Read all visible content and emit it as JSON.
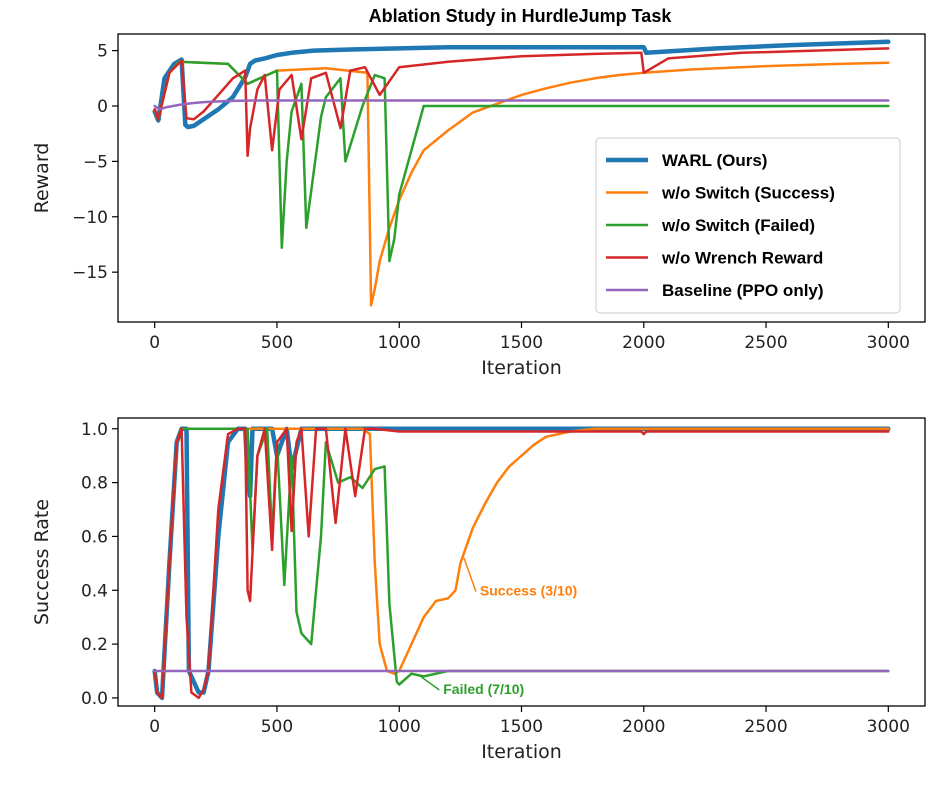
{
  "title": "Ablation Study in HurdleJump Task",
  "chart_data": [
    {
      "type": "line",
      "xlabel": "Iteration",
      "ylabel": "Reward",
      "xlim": [
        -150,
        3150
      ],
      "ylim": [
        -19.5,
        6.5
      ],
      "xticks": [
        0,
        500,
        1000,
        1500,
        2000,
        2500,
        3000
      ],
      "yticks": [
        5,
        0,
        -5,
        -10,
        -15
      ],
      "ytick_labels": [
        "5",
        "0",
        "−5",
        "−10",
        "−15"
      ],
      "legend": "right",
      "series": [
        {
          "name": "WARL (Ours)",
          "color": "#1f77b4",
          "width": 4.5,
          "x": [
            0,
            15,
            40,
            80,
            110,
            125,
            135,
            160,
            200,
            260,
            320,
            370,
            390,
            410,
            450,
            500,
            560,
            650,
            800,
            1000,
            1200,
            1500,
            1800,
            2000,
            2010,
            2300,
            2600,
            3000
          ],
          "y": [
            -0.5,
            -1.3,
            2.5,
            3.8,
            4.2,
            -1.7,
            -1.9,
            -1.8,
            -1.2,
            -0.3,
            0.8,
            2.6,
            3.8,
            4.1,
            4.3,
            4.6,
            4.8,
            5.0,
            5.1,
            5.2,
            5.3,
            5.3,
            5.3,
            5.3,
            4.8,
            5.2,
            5.5,
            5.8
          ]
        },
        {
          "name": "w/o Switch (Success)",
          "color": "#ff7f0e",
          "width": 2.5,
          "x": [
            0,
            15,
            60,
            100,
            300,
            380,
            500,
            700,
            870,
            885,
            900,
            920,
            960,
            1000,
            1050,
            1100,
            1200,
            1300,
            1400,
            1500,
            1600,
            1700,
            1800,
            1900,
            2000,
            2200,
            2500,
            2800,
            3000
          ],
          "y": [
            -0.3,
            -1.2,
            3.0,
            4.0,
            3.8,
            2.0,
            3.2,
            3.4,
            3.0,
            -18.0,
            -16.5,
            -14.0,
            -11.0,
            -8.5,
            -6.0,
            -4.0,
            -2.2,
            -0.6,
            0.2,
            1.0,
            1.6,
            2.1,
            2.5,
            2.8,
            3.0,
            3.3,
            3.6,
            3.8,
            3.9
          ]
        },
        {
          "name": "w/o Switch (Failed)",
          "color": "#2ca02c",
          "width": 2.5,
          "x": [
            0,
            15,
            60,
            100,
            300,
            380,
            500,
            520,
            540,
            560,
            600,
            620,
            680,
            700,
            760,
            780,
            850,
            900,
            940,
            960,
            980,
            1000,
            1100,
            1500,
            2000,
            3000
          ],
          "y": [
            -0.3,
            -1.2,
            3.0,
            4.0,
            3.8,
            2.0,
            3.2,
            -12.8,
            -5.0,
            -0.5,
            2.0,
            -11.0,
            -1.0,
            0.8,
            2.5,
            -5.0,
            0.0,
            2.8,
            2.5,
            -14.0,
            -12.0,
            -8.0,
            0.0,
            0.0,
            0.0,
            0.0
          ]
        },
        {
          "name": "w/o Wrench Reward",
          "color": "#d62728",
          "width": 2.5,
          "x": [
            0,
            15,
            60,
            110,
            130,
            160,
            200,
            260,
            320,
            370,
            380,
            390,
            420,
            450,
            480,
            510,
            560,
            600,
            640,
            700,
            760,
            800,
            860,
            920,
            1000,
            1200,
            1500,
            1800,
            1990,
            2000,
            2100,
            2400,
            2700,
            3000
          ],
          "y": [
            -0.3,
            -1.2,
            3.0,
            4.1,
            -1.1,
            -1.2,
            -0.5,
            1.0,
            2.5,
            3.2,
            -4.5,
            -2.0,
            1.5,
            2.8,
            -4.0,
            1.5,
            2.8,
            -3.0,
            2.5,
            3.0,
            -2.0,
            3.2,
            3.5,
            1.0,
            3.5,
            4.0,
            4.5,
            4.7,
            4.8,
            3.0,
            4.3,
            4.8,
            5.0,
            5.2
          ]
        },
        {
          "name": "Baseline (PPO only)",
          "color": "#9467bd",
          "width": 2.5,
          "x": [
            0,
            20,
            50,
            100,
            150,
            200,
            300,
            400,
            600,
            1000,
            2000,
            3000
          ],
          "y": [
            0.0,
            -0.3,
            -0.1,
            0.1,
            0.25,
            0.35,
            0.45,
            0.5,
            0.5,
            0.5,
            0.5,
            0.5
          ]
        }
      ]
    },
    {
      "type": "line",
      "xlabel": "Iteration",
      "ylabel": "Success Rate",
      "xlim": [
        -150,
        3150
      ],
      "ylim": [
        -0.03,
        1.04
      ],
      "xticks": [
        0,
        500,
        1000,
        1500,
        2000,
        2500,
        3000
      ],
      "yticks": [
        0.0,
        0.2,
        0.4,
        0.6,
        0.8,
        1.0
      ],
      "ytick_labels": [
        "0.0",
        "0.2",
        "0.4",
        "0.6",
        "0.8",
        "1.0"
      ],
      "annotations": [
        {
          "text": "Success (3/10)",
          "color": "#ff7f0e",
          "x": 1330,
          "y": 0.38,
          "target_x": 1265,
          "target_y": 0.52
        },
        {
          "text": "Failed (7/10)",
          "color": "#2ca02c",
          "x": 1180,
          "y": 0.015,
          "target_x": 1080,
          "target_y": 0.085
        }
      ],
      "series": [
        {
          "name": "WARL (Ours)",
          "color": "#1f77b4",
          "width": 4.5,
          "x": [
            0,
            10,
            30,
            60,
            90,
            110,
            130,
            140,
            180,
            200,
            220,
            260,
            300,
            340,
            370,
            380,
            390,
            400,
            440,
            480,
            500,
            540,
            560,
            600,
            640,
            700,
            800,
            1000,
            1500,
            2000,
            3000
          ],
          "y": [
            0.1,
            0.02,
            0.0,
            0.5,
            0.95,
            1.0,
            1.0,
            0.1,
            0.02,
            0.02,
            0.1,
            0.6,
            0.95,
            1.0,
            1.0,
            0.82,
            0.75,
            1.0,
            1.0,
            1.0,
            0.9,
            1.0,
            0.85,
            1.0,
            1.0,
            1.0,
            1.0,
            1.0,
            1.0,
            1.0,
            1.0
          ]
        },
        {
          "name": "w/o Switch (Success)",
          "color": "#ff7f0e",
          "width": 2.5,
          "x": [
            0,
            10,
            30,
            60,
            90,
            110,
            300,
            500,
            700,
            850,
            880,
            900,
            920,
            950,
            980,
            1000,
            1050,
            1100,
            1150,
            1200,
            1230,
            1250,
            1300,
            1350,
            1400,
            1450,
            1500,
            1550,
            1600,
            1700,
            1800,
            2000,
            3000
          ],
          "y": [
            0.1,
            0.02,
            0.0,
            0.5,
            0.95,
            1.0,
            1.0,
            1.0,
            1.0,
            1.0,
            0.98,
            0.5,
            0.2,
            0.1,
            0.09,
            0.1,
            0.2,
            0.3,
            0.36,
            0.37,
            0.4,
            0.5,
            0.63,
            0.72,
            0.8,
            0.86,
            0.9,
            0.94,
            0.97,
            0.99,
            1.0,
            1.0,
            1.0
          ]
        },
        {
          "name": "w/o Switch (Failed)",
          "color": "#2ca02c",
          "width": 2.5,
          "x": [
            0,
            10,
            30,
            60,
            90,
            110,
            300,
            340,
            380,
            400,
            420,
            460,
            480,
            500,
            530,
            560,
            580,
            600,
            640,
            680,
            700,
            750,
            800,
            850,
            900,
            940,
            960,
            990,
            1000,
            1050,
            1100,
            1150,
            1200,
            1500,
            2000,
            3000
          ],
          "y": [
            0.1,
            0.02,
            0.0,
            0.5,
            0.95,
            1.0,
            1.0,
            1.0,
            1.0,
            0.55,
            0.9,
            1.0,
            0.6,
            0.95,
            0.42,
            0.9,
            0.32,
            0.24,
            0.2,
            0.6,
            0.95,
            0.8,
            0.82,
            0.78,
            0.85,
            0.86,
            0.35,
            0.06,
            0.05,
            0.09,
            0.08,
            0.09,
            0.1,
            0.1,
            0.1,
            0.1
          ]
        },
        {
          "name": "w/o Wrench Reward",
          "color": "#d62728",
          "width": 2.5,
          "x": [
            0,
            10,
            30,
            60,
            90,
            110,
            130,
            150,
            180,
            200,
            220,
            260,
            300,
            340,
            370,
            380,
            390,
            420,
            450,
            480,
            500,
            540,
            560,
            580,
            600,
            630,
            660,
            700,
            740,
            780,
            820,
            860,
            900,
            1000,
            1500,
            1990,
            2000,
            2010,
            3000
          ],
          "y": [
            0.1,
            0.02,
            0.0,
            0.5,
            0.95,
            1.0,
            0.3,
            0.02,
            0.0,
            0.03,
            0.1,
            0.7,
            0.98,
            1.0,
            1.0,
            0.4,
            0.36,
            0.9,
            1.0,
            0.55,
            0.95,
            1.0,
            0.62,
            0.95,
            1.0,
            0.6,
            1.0,
            1.0,
            0.65,
            1.0,
            0.75,
            1.0,
            1.0,
            0.99,
            0.99,
            0.99,
            0.98,
            0.99,
            0.99
          ]
        },
        {
          "name": "Baseline (PPO only)",
          "color": "#9467bd",
          "width": 2.5,
          "x": [
            0,
            3000
          ],
          "y": [
            0.1,
            0.1
          ]
        }
      ]
    }
  ]
}
